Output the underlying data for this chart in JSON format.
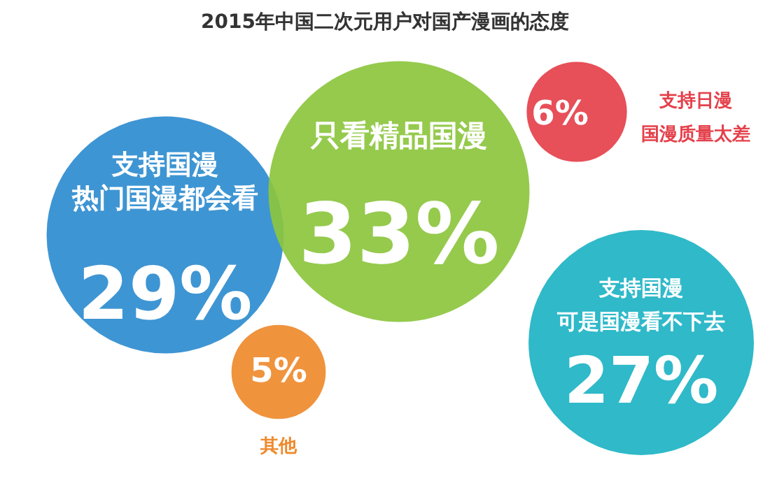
{
  "chart_data": {
    "type": "other",
    "title": "2015年中国二次元用户对国产漫画的态度",
    "categories": [
      "支持国漫热门国漫都会看",
      "只看精品国漫",
      "支持日漫国漫质量太差",
      "支持国漫可是国漫看不下去",
      "其他"
    ],
    "values": [
      29,
      33,
      6,
      27,
      5
    ],
    "value_labels": [
      "29%",
      "33%",
      "6%",
      "27%",
      "5%"
    ],
    "colors": [
      "#2e8ccf",
      "#8cc63e",
      "#e5404b",
      "#1db3c4",
      "#ef8a2c"
    ]
  }
}
